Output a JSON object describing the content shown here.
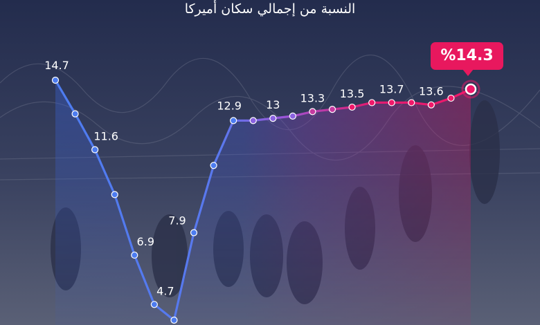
{
  "title": "النسبة من إجمالي سكان أميركا",
  "highlight_label": "%14.3",
  "colors": {
    "start": "#4d7cf0",
    "end": "#f0186a",
    "background": "#1c2444"
  },
  "chart_data": {
    "type": "area",
    "title": "النسبة من إجمالي سكان أميركا",
    "xlabel": "",
    "ylabel": "",
    "ylim": [
      2.7,
      16.5
    ],
    "grid": false,
    "points": [
      {
        "v": 14.7,
        "label": "14.7"
      },
      {
        "v": 13.2,
        "label": ""
      },
      {
        "v": 11.6,
        "label": "11.6"
      },
      {
        "v": 9.6,
        "label": ""
      },
      {
        "v": 6.9,
        "label": "6.9"
      },
      {
        "v": 4.7,
        "label": "4.7"
      },
      {
        "v": 4.0,
        "label": ""
      },
      {
        "v": 7.9,
        "label": "7.9"
      },
      {
        "v": 10.9,
        "label": ""
      },
      {
        "v": 12.9,
        "label": "12.9"
      },
      {
        "v": 12.9,
        "label": ""
      },
      {
        "v": 13.0,
        "label": "13"
      },
      {
        "v": 13.1,
        "label": ""
      },
      {
        "v": 13.3,
        "label": "13.3"
      },
      {
        "v": 13.4,
        "label": ""
      },
      {
        "v": 13.5,
        "label": "13.5"
      },
      {
        "v": 13.7,
        "label": ""
      },
      {
        "v": 13.7,
        "label": "13.7"
      },
      {
        "v": 13.7,
        "label": ""
      },
      {
        "v": 13.6,
        "label": "13.6"
      },
      {
        "v": 13.9,
        "label": ""
      },
      {
        "v": 14.3,
        "label": ""
      }
    ]
  }
}
